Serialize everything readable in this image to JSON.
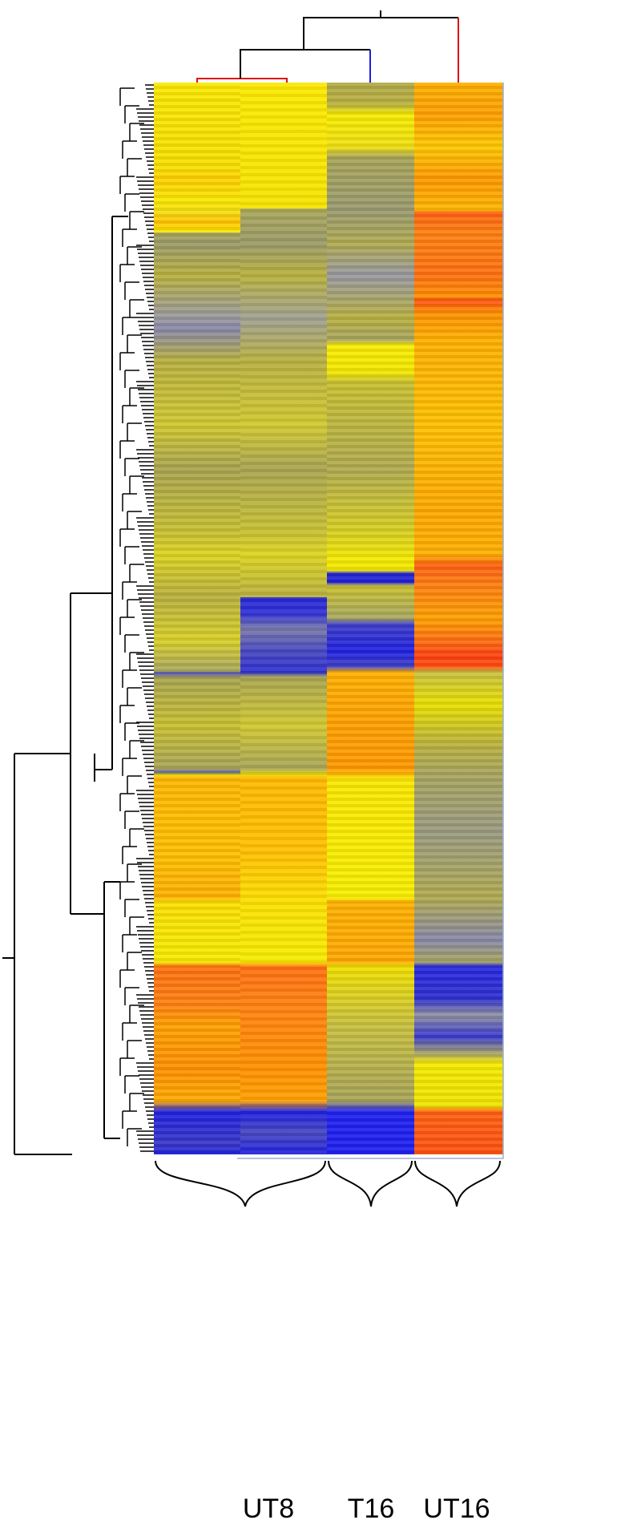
{
  "labels": [
    "UT8",
    "T16",
    "UT16"
  ]
}
